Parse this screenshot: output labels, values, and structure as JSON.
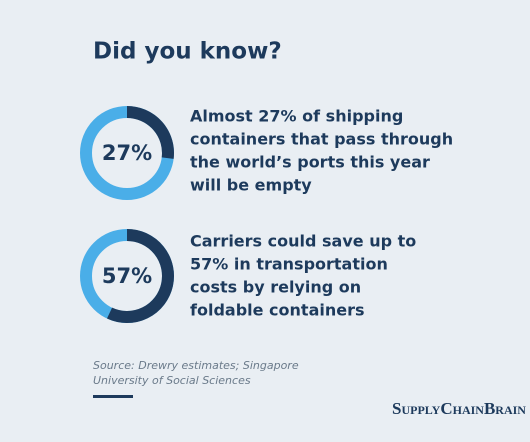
{
  "title": "Did you know?",
  "chart_data": [
    {
      "type": "donut",
      "values": [
        27
      ],
      "value_labels": [
        "27%"
      ],
      "color": "#1d3a5c",
      "track_color": "#4aaee8",
      "text": [
        "Almost 27% of shipping",
        "containers that pass through",
        "the world’s ports this year",
        "will be empty"
      ]
    },
    {
      "type": "donut",
      "values": [
        57
      ],
      "value_labels": [
        "57%"
      ],
      "color": "#1d3a5c",
      "track_color": "#4aaee8",
      "text": [
        "Carriers could save up to",
        "57% in transportation",
        "costs by relying on",
        "foldable containers"
      ]
    }
  ],
  "source": [
    "Source: Drewry estimates; Singapore",
    "University of Social Sciences"
  ],
  "brand": "SupplyChainBrain"
}
